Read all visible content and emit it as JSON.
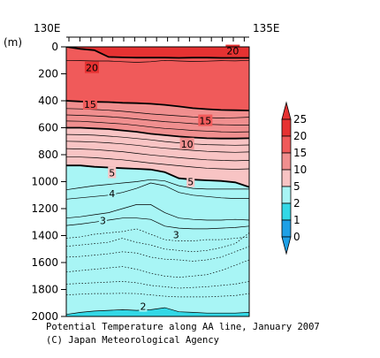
{
  "chart_data": {
    "type": "contour-section",
    "title": "Potential Temperature along AA line, January 2007",
    "credit": "(C) Japan Meteorological Agency",
    "x_axis": {
      "labels": [
        "130E",
        "135E"
      ],
      "range": [
        130,
        135
      ]
    },
    "y_axis": {
      "unit_label": "(m)",
      "range": [
        0,
        2000
      ],
      "inverted": true,
      "ticks": [
        0,
        200,
        400,
        600,
        800,
        1000,
        1200,
        1400,
        1600,
        1800,
        2000
      ]
    },
    "colorbar": {
      "levels": [
        0,
        1,
        2,
        5,
        10,
        15,
        20,
        25
      ],
      "colors": [
        "#1ea0e6",
        "#33d8e6",
        "#a8f5f5",
        "#f8c4c4",
        "#f08f8f",
        "#f05a5a",
        "#e63232"
      ]
    },
    "isotherms": [
      {
        "value": 20,
        "depths": [
          0,
          15,
          25,
          75,
          78,
          80,
          80,
          80,
          82,
          80,
          80,
          82,
          82,
          82
        ],
        "bold": true
      },
      {
        "value": 18,
        "depths": [
          100,
          102,
          105,
          105,
          110,
          115,
          110,
          100,
          105,
          108,
          106,
          102,
          104,
          100
        ],
        "bold": false
      },
      {
        "value": 15,
        "depths": [
          400,
          405,
          408,
          410,
          415,
          418,
          422,
          430,
          442,
          455,
          462,
          468,
          470,
          472
        ],
        "bold": true
      },
      {
        "value": 13,
        "depths": [
          458,
          460,
          465,
          470,
          478,
          488,
          498,
          505,
          512,
          520,
          525,
          528,
          526,
          522
        ],
        "bold": false
      },
      {
        "value": 12,
        "depths": [
          505,
          508,
          512,
          518,
          525,
          535,
          545,
          555,
          562,
          570,
          575,
          578,
          580,
          580
        ],
        "bold": false
      },
      {
        "value": 11,
        "depths": [
          550,
          552,
          558,
          565,
          572,
          582,
          595,
          605,
          612,
          620,
          625,
          630,
          632,
          630
        ],
        "bold": false
      },
      {
        "value": 10,
        "depths": [
          600,
          600,
          605,
          610,
          620,
          630,
          645,
          655,
          665,
          672,
          678,
          680,
          680,
          678
        ],
        "bold": true
      },
      {
        "value": 9,
        "depths": [
          650,
          652,
          655,
          662,
          670,
          680,
          690,
          702,
          712,
          720,
          725,
          728,
          730,
          728
        ],
        "bold": false
      },
      {
        "value": 8,
        "depths": [
          700,
          702,
          706,
          712,
          720,
          730,
          742,
          752,
          760,
          768,
          775,
          780,
          782,
          780
        ],
        "bold": false
      },
      {
        "value": 7,
        "depths": [
          755,
          758,
          762,
          770,
          778,
          790,
          802,
          812,
          822,
          830,
          838,
          842,
          845,
          842
        ],
        "bold": false
      },
      {
        "value": 6,
        "depths": [
          815,
          818,
          822,
          830,
          838,
          850,
          862,
          872,
          882,
          892,
          900,
          905,
          908,
          905
        ],
        "bold": false
      },
      {
        "value": 5,
        "depths": [
          880,
          880,
          890,
          895,
          900,
          905,
          910,
          930,
          975,
          985,
          990,
          995,
          1005,
          1040
        ],
        "bold": true
      },
      {
        "value": 4.5,
        "depths": [
          1060,
          1045,
          1030,
          1020,
          1010,
          1000,
          985,
          995,
          1030,
          1050,
          1055,
          1055,
          1055,
          1055
        ],
        "bold": false
      },
      {
        "value": 4,
        "depths": [
          1130,
          1120,
          1110,
          1100,
          1080,
          1050,
          1010,
          1030,
          1080,
          1100,
          1110,
          1120,
          1125,
          1125
        ],
        "bold": false
      },
      {
        "value": 3.5,
        "depths": [
          1270,
          1260,
          1245,
          1230,
          1200,
          1170,
          1170,
          1230,
          1270,
          1280,
          1285,
          1285,
          1280,
          1285
        ],
        "bold": false
      },
      {
        "value": 3,
        "depths": [
          1325,
          1315,
          1300,
          1285,
          1270,
          1270,
          1280,
          1330,
          1345,
          1350,
          1350,
          1345,
          1340,
          1330
        ],
        "bold": false
      },
      {
        "value": 2.8,
        "depths": [
          1420,
          1410,
          1390,
          1380,
          1370,
          1350,
          1390,
          1430,
          1440,
          1440,
          1430,
          1430,
          1420,
          1410
        ],
        "bold": false,
        "dotted": true
      },
      {
        "value": 2.6,
        "depths": [
          1480,
          1470,
          1460,
          1450,
          1420,
          1450,
          1470,
          1500,
          1510,
          1520,
          1510,
          1490,
          1460,
          1380
        ],
        "bold": false,
        "dotted": true
      },
      {
        "value": 2.5,
        "depths": [
          1560,
          1555,
          1545,
          1535,
          1520,
          1530,
          1560,
          1575,
          1580,
          1590,
          1580,
          1560,
          1520,
          1480
        ],
        "bold": false,
        "dotted": true
      },
      {
        "value": 2.4,
        "depths": [
          1670,
          1660,
          1650,
          1640,
          1630,
          1650,
          1680,
          1700,
          1710,
          1700,
          1690,
          1660,
          1620,
          1580
        ],
        "bold": false,
        "dotted": true
      },
      {
        "value": 2.3,
        "depths": [
          1760,
          1755,
          1750,
          1745,
          1740,
          1750,
          1770,
          1780,
          1790,
          1785,
          1780,
          1770,
          1760,
          1740
        ],
        "bold": false,
        "dotted": true
      },
      {
        "value": 2.2,
        "depths": [
          1840,
          1835,
          1830,
          1830,
          1828,
          1830,
          1840,
          1850,
          1855,
          1855,
          1855,
          1850,
          1845,
          1830
        ],
        "bold": false,
        "dotted": true
      },
      {
        "value": 2,
        "depths": [
          1985,
          1970,
          1960,
          1955,
          1950,
          1955,
          1950,
          1935,
          1965,
          1970,
          1975,
          1975,
          1975,
          1970
        ],
        "bold": false
      }
    ],
    "contour_labels": [
      {
        "text": "20",
        "lon": 130.7,
        "depth": 155
      },
      {
        "text": "20",
        "lon": 134.55,
        "depth": 30
      },
      {
        "text": "15",
        "lon": 130.65,
        "depth": 425
      },
      {
        "text": "15",
        "lon": 133.8,
        "depth": 548
      },
      {
        "text": "10",
        "lon": 133.3,
        "depth": 720
      },
      {
        "text": "5",
        "lon": 131.25,
        "depth": 935
      },
      {
        "text": "5",
        "lon": 133.4,
        "depth": 1000
      },
      {
        "text": "4",
        "lon": 131.25,
        "depth": 1090
      },
      {
        "text": "3",
        "lon": 131.0,
        "depth": 1290
      },
      {
        "text": "3",
        "lon": 133.0,
        "depth": 1395
      },
      {
        "text": "2",
        "lon": 132.1,
        "depth": 1925
      }
    ]
  }
}
